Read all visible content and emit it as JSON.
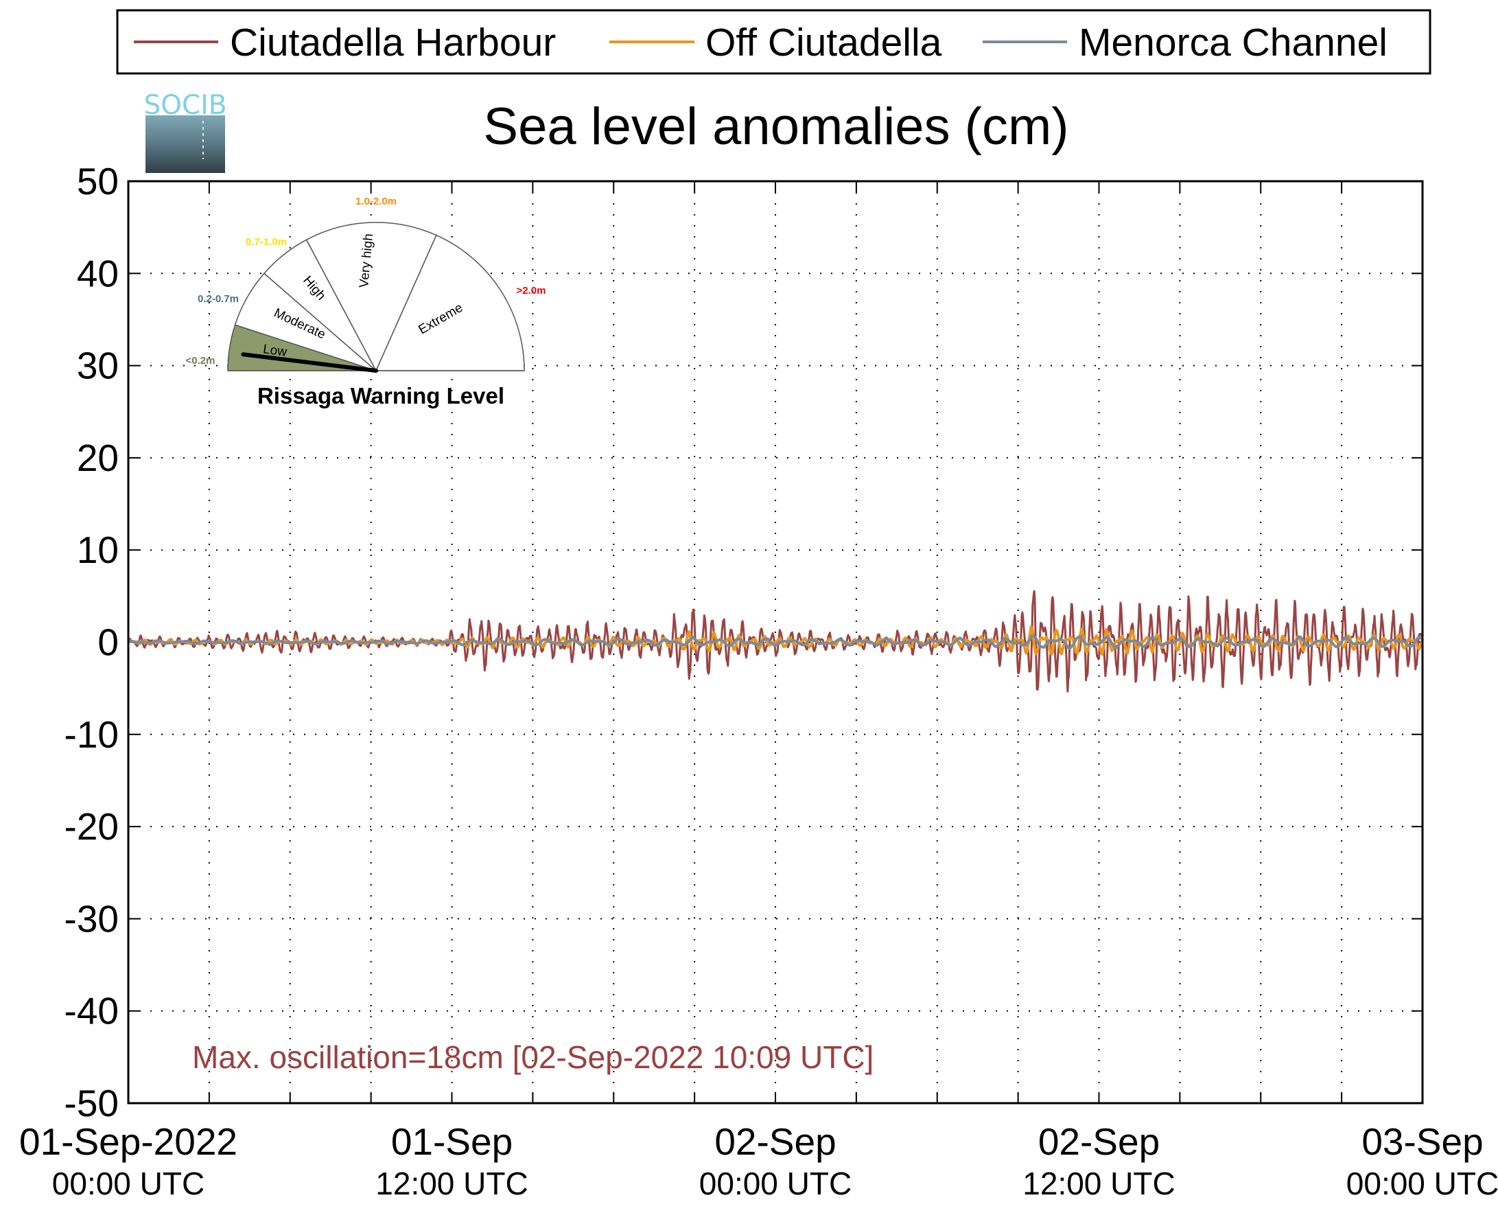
{
  "chart_data": {
    "type": "line",
    "title": "Sea level anomalies (cm)",
    "ylabel": "",
    "xlabel": "",
    "ylim": [
      -50,
      50
    ],
    "yticks": [
      50,
      40,
      30,
      20,
      10,
      0,
      -10,
      -20,
      -30,
      -40,
      -50
    ],
    "xlim_hours": [
      0,
      48
    ],
    "grid": true,
    "legend_position": "top",
    "xticks": [
      {
        "line1": "01-Sep-2022",
        "line2": "00:00 UTC"
      },
      {
        "line1": "01-Sep",
        "line2": "12:00 UTC"
      },
      {
        "line1": "02-Sep",
        "line2": "00:00 UTC"
      },
      {
        "line1": "02-Sep",
        "line2": "12:00 UTC"
      },
      {
        "line1": "03-Sep",
        "line2": "00:00 UTC"
      }
    ],
    "series": [
      {
        "name": "Ciutadella Harbour",
        "color": "#9a4444"
      },
      {
        "name": "Off Ciutadella",
        "color": "#e8961e"
      },
      {
        "name": "Menorca Channel",
        "color": "#7a8aa0"
      }
    ],
    "envelope_cm": {
      "time_hours": [
        0,
        2,
        4,
        6,
        8,
        10,
        11.8,
        12,
        13,
        14,
        15,
        17,
        19,
        20,
        20.5,
        21,
        22,
        23,
        25,
        27,
        29,
        31,
        32,
        33,
        33.5,
        34,
        35,
        36,
        38,
        40,
        42,
        44,
        46,
        48
      ],
      "ciutadella_harbour": [
        0.8,
        0.6,
        1.0,
        1.5,
        0.8,
        0.6,
        0.4,
        1.5,
        3.5,
        2.5,
        2.0,
        2.5,
        1.8,
        1.6,
        5.0,
        4.5,
        3.5,
        2.0,
        1.5,
        0.8,
        1.5,
        1.2,
        2.0,
        4.0,
        7.5,
        6.0,
        5.5,
        4.5,
        5.0,
        5.5,
        5.0,
        5.0,
        4.0,
        4.0
      ],
      "off_ciutadella": [
        0.3,
        0.3,
        0.3,
        0.3,
        0.3,
        0.3,
        0.3,
        0.5,
        0.7,
        0.6,
        0.6,
        0.6,
        0.6,
        0.6,
        1.2,
        1.3,
        1.0,
        0.8,
        0.6,
        0.4,
        0.6,
        0.6,
        0.8,
        1.2,
        1.8,
        1.8,
        1.6,
        1.6,
        1.2,
        1.2,
        1.0,
        1.0,
        1.0,
        1.0
      ],
      "menorca_channel": [
        0.2,
        0.2,
        0.2,
        0.2,
        0.2,
        0.2,
        0.2,
        0.3,
        0.4,
        0.4,
        0.4,
        0.4,
        0.4,
        0.4,
        0.5,
        0.6,
        0.5,
        0.5,
        0.4,
        0.4,
        0.4,
        0.5,
        0.5,
        0.6,
        0.8,
        0.8,
        0.8,
        0.7,
        0.6,
        0.6,
        0.6,
        0.6,
        0.6,
        0.6
      ]
    },
    "annotation": "Max. oscillation=18cm [02-Sep-2022 10:09 UTC]"
  },
  "logo": {
    "text": "SOCIB"
  },
  "gauge": {
    "title": "Rissaga Warning Level",
    "current_level": "Low",
    "segments": [
      {
        "label": "Low",
        "range": "<0.2m",
        "range_color": "#6e7f50",
        "fill": "#8d9a6c"
      },
      {
        "label": "Moderate",
        "range": "0.2-0.7m",
        "range_color": "#4a6f7f",
        "fill": "#ffffff"
      },
      {
        "label": "High",
        "range": "0.7-1.0m",
        "range_color": "#ffe000",
        "fill": "#ffffff"
      },
      {
        "label": "Very high",
        "range": "1.0-2.0m",
        "range_color": "#ff8c00",
        "fill": "#ffffff"
      },
      {
        "label": "Extreme",
        "range": ">2.0m",
        "range_color": "#ee0000",
        "fill": "#ffffff"
      }
    ]
  }
}
